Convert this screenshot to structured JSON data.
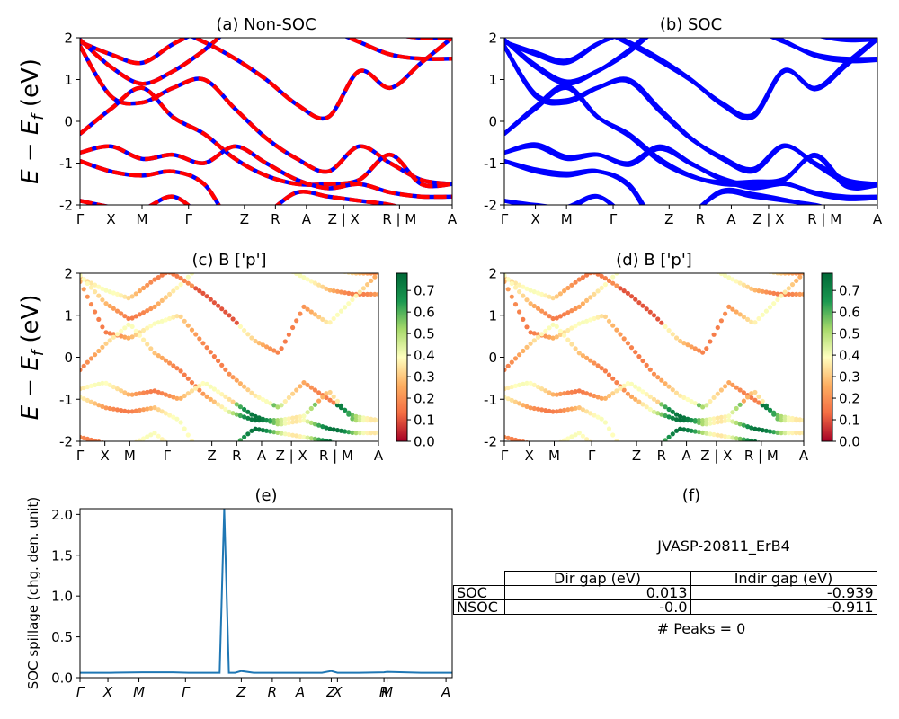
{
  "ylabel_main": "E − E_f (eV)",
  "colorbar_ticks": [
    "0.0",
    "0.1",
    "0.2",
    "0.3",
    "0.4",
    "0.5",
    "0.6",
    "0.7"
  ],
  "colorbar_range": [
    0.0,
    0.78
  ],
  "colors": {
    "nonsoc_primary": "#0000ff",
    "nonsoc_overlay": "#ff0000",
    "soc": "#0000ff",
    "spillage": "#1f77b4",
    "colormap": [
      "#a50026",
      "#f46d43",
      "#fdae61",
      "#ffffbf",
      "#a6d96a",
      "#1a9850",
      "#006837"
    ]
  },
  "chart_data": [
    {
      "id": "a",
      "type": "line",
      "title": "(a) Non-SOC",
      "ylabel": "E − E_f (eV)",
      "ylim": [
        -2,
        2
      ],
      "yticks": [
        -2,
        -1,
        0,
        1,
        2
      ],
      "xlim": [
        0,
        12
      ],
      "kpath": [
        {
          "label": "Γ",
          "pos": 0.0
        },
        {
          "label": "X",
          "pos": 1.0
        },
        {
          "label": "M",
          "pos": 2.0
        },
        {
          "label": "Γ",
          "pos": 3.5
        },
        {
          "label": "Z",
          "pos": 5.3
        },
        {
          "label": "R",
          "pos": 6.3
        },
        {
          "label": "A",
          "pos": 7.3
        },
        {
          "label": "Z | X",
          "pos": 8.5
        },
        {
          "label": "R | M",
          "pos": 10.3
        },
        {
          "label": "A",
          "pos": 12.0
        }
      ],
      "bands": [
        [
          1.9,
          1.6,
          1.4,
          1.85,
          2.2,
          2.5,
          2.6,
          2.6,
          2.5,
          2.3,
          2.1,
          2.0,
          2.0
        ],
        [
          1.95,
          1.3,
          0.9,
          1.2,
          1.7,
          2.3,
          2.5,
          2.4,
          2.2,
          1.9,
          1.6,
          1.5,
          1.5
        ],
        [
          1.8,
          0.6,
          0.45,
          0.8,
          1.0,
          0.3,
          -0.4,
          -0.9,
          -1.2,
          -0.6,
          -1.0,
          -1.4,
          -1.5
        ],
        [
          -0.3,
          0.3,
          0.8,
          0.1,
          -0.3,
          -0.9,
          -1.3,
          -1.5,
          -1.5,
          -1.4,
          -0.8,
          -1.5,
          -1.5
        ],
        [
          -0.75,
          -0.6,
          -0.9,
          -0.8,
          -1.0,
          -0.6,
          -1.0,
          -1.4,
          -1.6,
          -1.5,
          -1.7,
          -1.8,
          -1.8
        ],
        [
          -0.95,
          -1.2,
          -1.3,
          -1.2,
          -1.5,
          -2.5,
          -2.2,
          -1.7,
          -1.8,
          -1.9,
          -2.0,
          -2.2,
          -2.3
        ],
        [
          -1.9,
          -2.05,
          -2.1,
          -1.8,
          -2.3,
          -2.6,
          -2.5,
          -2.4,
          -2.3,
          -2.3,
          -2.3,
          -2.4,
          -2.4
        ],
        [
          2.6,
          2.4,
          2.3,
          2.2,
          1.9,
          1.5,
          1.0,
          0.4,
          0.1,
          1.2,
          0.8,
          1.4,
          2.0
        ]
      ]
    },
    {
      "id": "b",
      "type": "line",
      "title": "(b) SOC",
      "ylim": [
        -2,
        2
      ],
      "yticks": [
        -2,
        -1,
        0,
        1,
        2
      ],
      "xlim": [
        0,
        12
      ],
      "kpath": [
        {
          "label": "Γ",
          "pos": 0.0
        },
        {
          "label": "X",
          "pos": 1.0
        },
        {
          "label": "M",
          "pos": 2.0
        },
        {
          "label": "Γ",
          "pos": 3.5
        },
        {
          "label": "Z",
          "pos": 5.3
        },
        {
          "label": "R",
          "pos": 6.3
        },
        {
          "label": "A",
          "pos": 7.3
        },
        {
          "label": "Z | X",
          "pos": 8.5
        },
        {
          "label": "R | M",
          "pos": 10.3
        },
        {
          "label": "A",
          "pos": 12.0
        }
      ]
    },
    {
      "id": "c",
      "type": "scatter",
      "title": "(c)  B ['p']",
      "ylabel": "E − E_f (eV)",
      "ylim": [
        -2,
        2
      ],
      "yticks": [
        -2,
        -1,
        0,
        1,
        2
      ],
      "xlim": [
        0,
        12
      ],
      "kpath": [
        {
          "label": "Γ",
          "pos": 0.0
        },
        {
          "label": "X",
          "pos": 1.0
        },
        {
          "label": "M",
          "pos": 2.0
        },
        {
          "label": "Γ",
          "pos": 3.5
        },
        {
          "label": "Z",
          "pos": 5.3
        },
        {
          "label": "R",
          "pos": 6.3
        },
        {
          "label": "A",
          "pos": 7.3
        },
        {
          "label": "Z | X",
          "pos": 8.5
        },
        {
          "label": "R | M",
          "pos": 10.3
        },
        {
          "label": "A",
          "pos": 12.0
        }
      ],
      "colorbar_ticks": [
        0.0,
        0.1,
        0.2,
        0.3,
        0.4,
        0.5,
        0.6,
        0.7
      ]
    },
    {
      "id": "d",
      "type": "scatter",
      "title": "(d) B ['p']",
      "ylim": [
        -2,
        2
      ],
      "yticks": [
        -2,
        -1,
        0,
        1,
        2
      ],
      "xlim": [
        0,
        12
      ],
      "kpath": [
        {
          "label": "Γ",
          "pos": 0.0
        },
        {
          "label": "X",
          "pos": 1.0
        },
        {
          "label": "M",
          "pos": 2.0
        },
        {
          "label": "Γ",
          "pos": 3.5
        },
        {
          "label": "Z",
          "pos": 5.3
        },
        {
          "label": "R",
          "pos": 6.3
        },
        {
          "label": "A",
          "pos": 7.3
        },
        {
          "label": "Z | X",
          "pos": 8.5
        },
        {
          "label": "R | M",
          "pos": 10.3
        },
        {
          "label": "A",
          "pos": 12.0
        }
      ],
      "colorbar_ticks": [
        0.0,
        0.1,
        0.2,
        0.3,
        0.4,
        0.5,
        0.6,
        0.7
      ]
    },
    {
      "id": "e",
      "type": "line",
      "title": "(e)",
      "ylabel": "SOC spillage (chg. den. unit)",
      "ylim": [
        0,
        2.07
      ],
      "yticks": [
        0.0,
        0.5,
        1.0,
        1.5,
        2.0
      ],
      "xlim": [
        0,
        12
      ],
      "kpath": [
        {
          "label": "Γ",
          "pos": 0.0
        },
        {
          "label": "X",
          "pos": 0.9
        },
        {
          "label": "M",
          "pos": 1.9
        },
        {
          "label": "Γ",
          "pos": 3.4
        },
        {
          "label": "Z",
          "pos": 5.2
        },
        {
          "label": "R",
          "pos": 6.2
        },
        {
          "label": "A",
          "pos": 7.1
        },
        {
          "label": "Z",
          "pos": 8.1
        },
        {
          "label": "X",
          "pos": 8.3
        },
        {
          "label": "R",
          "pos": 9.8
        },
        {
          "label": "M",
          "pos": 9.9
        },
        {
          "label": "A",
          "pos": 11.8
        }
      ],
      "x": [
        0,
        1,
        2,
        3,
        3.5,
        4.2,
        4.5,
        4.65,
        4.8,
        5.0,
        5.2,
        5.6,
        6,
        7,
        7.8,
        8.1,
        8.3,
        9,
        9.8,
        9.9,
        11,
        12
      ],
      "y": [
        0.06,
        0.06,
        0.065,
        0.065,
        0.06,
        0.06,
        0.06,
        2.07,
        0.06,
        0.06,
        0.08,
        0.06,
        0.06,
        0.06,
        0.06,
        0.08,
        0.06,
        0.06,
        0.065,
        0.07,
        0.06,
        0.06
      ]
    }
  ],
  "summary": {
    "title": "(f)",
    "material": "JVASP-20811_ErB4",
    "columns": [
      "Dir gap (eV)",
      "Indir gap (eV)"
    ],
    "rows": [
      {
        "label": "SOC",
        "dir": "0.013",
        "indir": "-0.939"
      },
      {
        "label": "NSOC",
        "dir": "-0.0",
        "indir": "-0.911"
      }
    ],
    "peaks": "# Peaks = 0"
  }
}
